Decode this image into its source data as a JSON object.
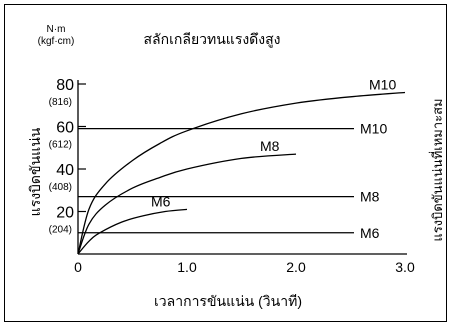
{
  "chart_data": {
    "type": "line",
    "title": "สลักเกลียวทนแรงดึงสูง",
    "unit_top": "N·m",
    "unit_sub": "(kgf·cm)",
    "ylabel_left": "แรงบิดขันแน่น",
    "ylabel_right": "แรงบิดขันแน่นที่เหมาะสม",
    "xlabel": "เวลาการขันแน่น (วินาที)",
    "xlim": [
      0,
      3.0
    ],
    "ylim": [
      0,
      80
    ],
    "x_ticks": [
      {
        "value": 0,
        "label": "0"
      },
      {
        "value": 1.0,
        "label": "1.0"
      },
      {
        "value": 2.0,
        "label": "2.0"
      },
      {
        "value": 3.0,
        "label": "3.0"
      }
    ],
    "y_ticks": [
      {
        "value": 20,
        "label": "20",
        "sub": "(204)"
      },
      {
        "value": 40,
        "label": "40",
        "sub": "(408)"
      },
      {
        "value": 60,
        "label": "60",
        "sub": "(612)"
      },
      {
        "value": 80,
        "label": "80",
        "sub": "(816)"
      }
    ],
    "series": [
      {
        "name": "M10",
        "x": [
          0,
          0.1,
          0.25,
          0.5,
          0.75,
          1.0,
          1.5,
          2.0,
          2.5,
          3.0
        ],
        "y": [
          0,
          21,
          33,
          44,
          52,
          58,
          66,
          71,
          74,
          76
        ]
      },
      {
        "name": "M8",
        "x": [
          0,
          0.1,
          0.25,
          0.5,
          0.75,
          1.0,
          1.5,
          2.0
        ],
        "y": [
          0,
          14,
          23,
          31,
          36,
          40,
          45,
          47
        ]
      },
      {
        "name": "M6",
        "x": [
          0,
          0.1,
          0.2,
          0.4,
          0.6,
          0.8,
          1.0
        ],
        "y": [
          0,
          6,
          10,
          15,
          18,
          20,
          21
        ]
      }
    ],
    "reference_lines": [
      {
        "name": "M10",
        "y": 59
      },
      {
        "name": "M8",
        "y": 27
      },
      {
        "name": "M6",
        "y": 10
      }
    ]
  }
}
